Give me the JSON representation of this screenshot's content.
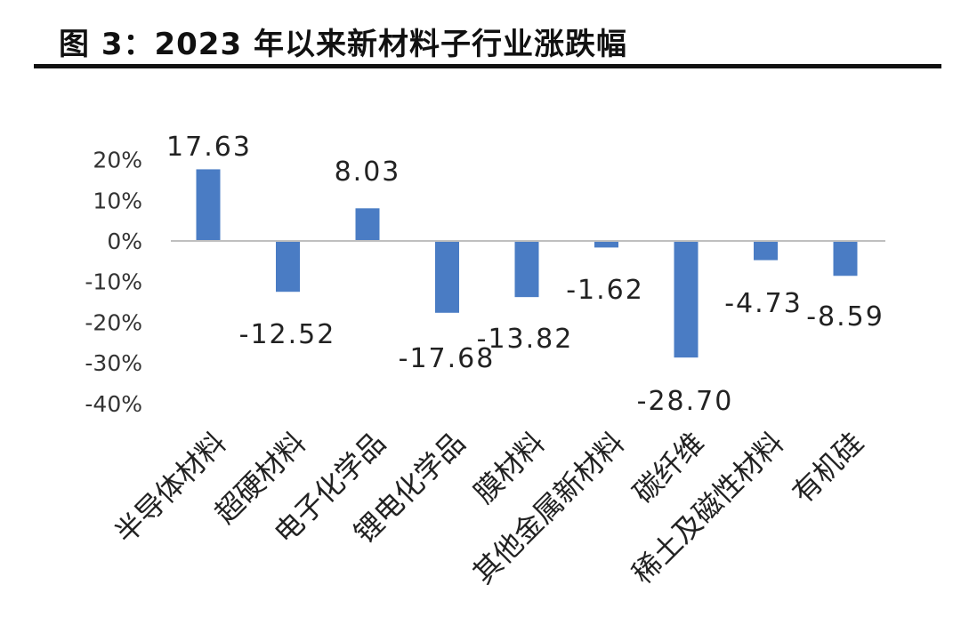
{
  "title": "图 3：2023 年以来新材料子行业涨跌幅",
  "chart_data": {
    "type": "bar",
    "title": "",
    "xlabel": "",
    "ylabel": "",
    "ylim": [
      -40,
      20
    ],
    "yticks": [
      "20%",
      "10%",
      "0%",
      "-10%",
      "-20%",
      "-30%",
      "-40%"
    ],
    "ytick_values": [
      20,
      10,
      0,
      -10,
      -20,
      -30,
      -40
    ],
    "grid": false,
    "bar_color": "#4a7cc4",
    "categories": [
      "半导体材料",
      "超硬材料",
      "电子化学品",
      "锂电化学品",
      "膜材料",
      "其他金属新材料",
      "碳纤维",
      "稀土及磁性材料",
      "有机硅"
    ],
    "values": [
      17.63,
      -12.52,
      8.03,
      -17.68,
      -13.82,
      -1.62,
      -28.7,
      -4.73,
      -8.59
    ],
    "data_labels": [
      "17.63",
      "-12.52",
      "8.03",
      "-17.68",
      "-13.82",
      "-1.62",
      "-28.70",
      "-4.73",
      "-8.59"
    ]
  }
}
